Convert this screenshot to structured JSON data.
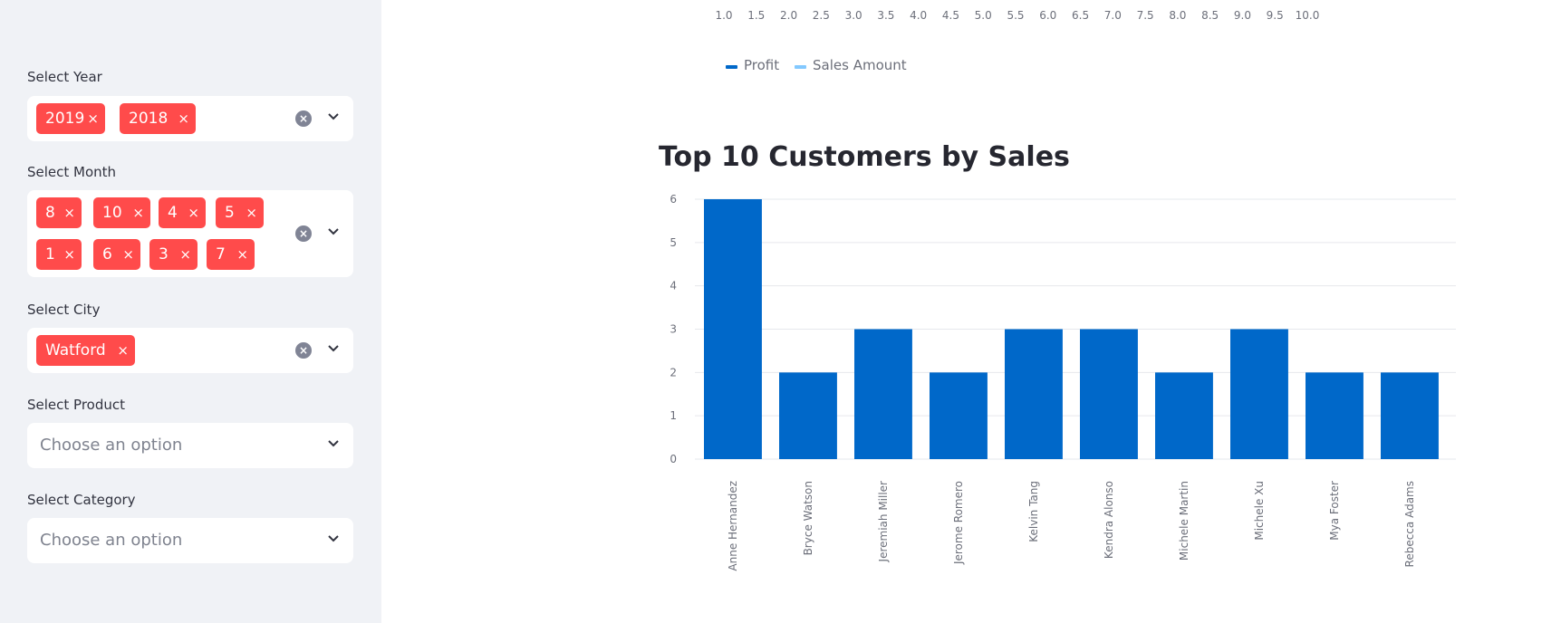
{
  "sidebar": {
    "year": {
      "label": "Select Year",
      "tags": [
        "2019",
        "2018"
      ]
    },
    "month": {
      "label": "Select Month",
      "tags": [
        "8",
        "10",
        "4",
        "5",
        "1",
        "6",
        "3",
        "7"
      ]
    },
    "city": {
      "label": "Select City",
      "tags": [
        "Watford"
      ]
    },
    "product": {
      "label": "Select Product",
      "placeholder": "Choose an option"
    },
    "category": {
      "label": "Select Category",
      "placeholder": "Choose an option"
    },
    "tag_remove_glyph": "×",
    "clear_glyph": "×",
    "icons": {
      "clear": "clear-icon",
      "dropdown": "chevron-down-icon"
    }
  },
  "previous_chart": {
    "x_ticks": [
      "1.0",
      "1.5",
      "2.0",
      "2.5",
      "3.0",
      "3.5",
      "4.0",
      "4.5",
      "5.0",
      "5.5",
      "6.0",
      "6.5",
      "7.0",
      "7.5",
      "8.0",
      "8.5",
      "9.0",
      "9.5",
      "10.0"
    ],
    "legend": [
      {
        "name": "Profit",
        "color": "#0068c9"
      },
      {
        "name": "Sales Amount",
        "color": "#83c9ff"
      }
    ]
  },
  "chart_data": {
    "type": "bar",
    "title": "Top 10 Customers by Sales",
    "categories": [
      "Anne Hernandez",
      "Bryce Watson",
      "Jeremiah Miller",
      "Jerome Romero",
      "Kelvin Tang",
      "Kendra Alonso",
      "Michele Martin",
      "Michele Xu",
      "Mya Foster",
      "Rebecca Adams"
    ],
    "values": [
      6,
      2,
      3,
      2,
      3,
      3,
      2,
      3,
      2,
      2
    ],
    "ylim": [
      0,
      6
    ],
    "y_ticks": [
      "0",
      "1",
      "2",
      "3",
      "4",
      "5",
      "6"
    ],
    "xlabel": "",
    "ylabel": "",
    "grid": true,
    "bar_color": "#0068c9"
  }
}
